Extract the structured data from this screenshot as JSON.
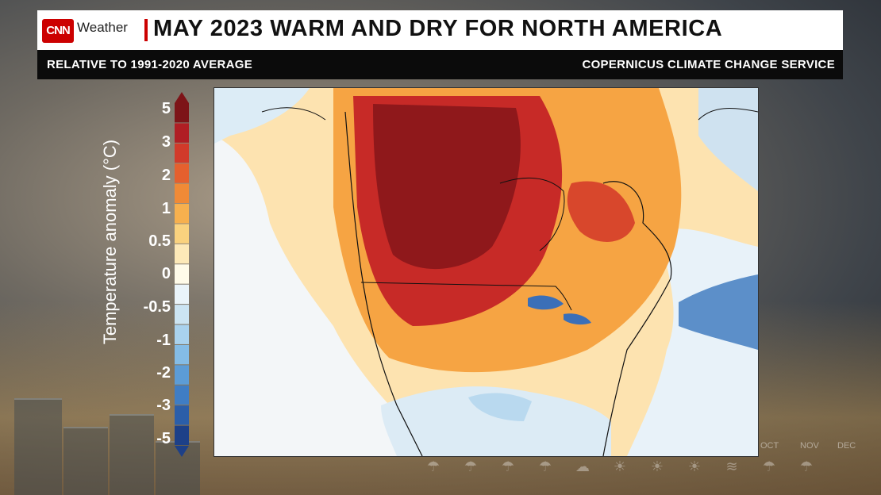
{
  "header": {
    "logo_text": "CNN",
    "weather_label": "Weather",
    "title": "MAY 2023 WARM AND DRY FOR NORTH AMERICA"
  },
  "subheader": {
    "left": "RELATIVE TO 1991-2020 AVERAGE",
    "right": "COPERNICUS CLIMATE CHANGE SERVICE"
  },
  "legend": {
    "title": "Temperature anomaly (°C)",
    "ticks": [
      "5",
      "3",
      "2",
      "1",
      "0.5",
      "0",
      "-0.5",
      "-1",
      "-2",
      "-3",
      "-5"
    ],
    "colors": [
      "#7d1418",
      "#b01e24",
      "#d13a2a",
      "#e5602e",
      "#f08a36",
      "#f7b04e",
      "#fad27e",
      "#fde9b8",
      "#fffbe9",
      "#eaf4fa",
      "#cbe4f3",
      "#a9d2ee",
      "#84bce6",
      "#5c9cd6",
      "#3f7dc4",
      "#2b5ea9",
      "#1d4088"
    ]
  },
  "background_months": [
    "OCT",
    "NOV",
    "DEC"
  ],
  "weather_icons": [
    "cloud-rain-icon",
    "cloud-rain-icon",
    "cloud-rain-icon",
    "cloud-rain-icon",
    "cloud-icon",
    "sun-icon",
    "sun-icon",
    "sun-icon",
    "wind-icon",
    "cloud-rain-icon",
    "cloud-rain-icon",
    "cloud-rain-icon"
  ]
}
